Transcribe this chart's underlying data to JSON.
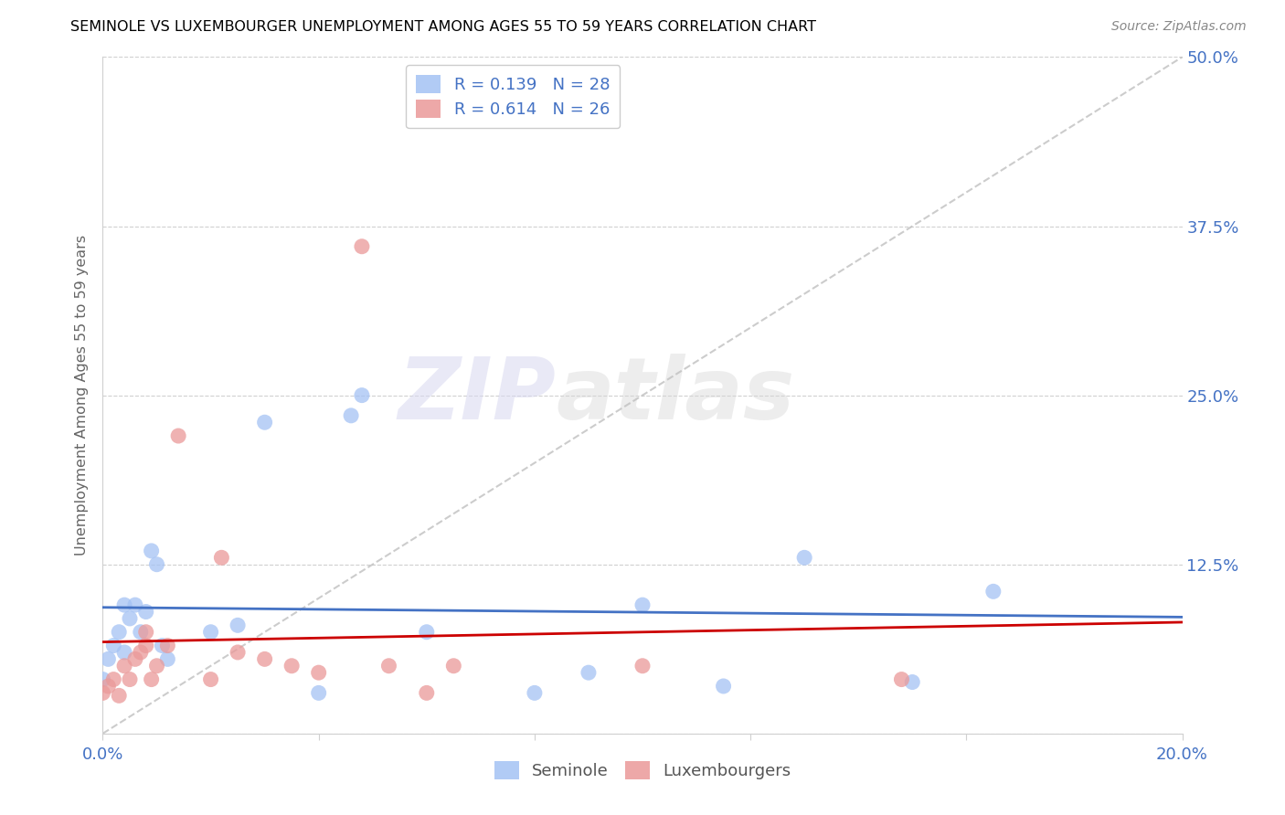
{
  "title": "SEMINOLE VS LUXEMBOURGER UNEMPLOYMENT AMONG AGES 55 TO 59 YEARS CORRELATION CHART",
  "source": "Source: ZipAtlas.com",
  "ylabel": "Unemployment Among Ages 55 to 59 years",
  "xlim": [
    0.0,
    0.2
  ],
  "ylim": [
    0.0,
    0.5
  ],
  "seminole_color": "#a4c2f4",
  "luxembourger_color": "#ea9999",
  "trend_color_diagonal": "#c0c0c0",
  "trend_color_seminole": "#4472c4",
  "trend_color_luxembourger": "#cc0000",
  "seminole_R": 0.139,
  "seminole_N": 28,
  "luxembourger_R": 0.614,
  "luxembourger_N": 26,
  "seminole_x": [
    0.0,
    0.001,
    0.002,
    0.003,
    0.004,
    0.004,
    0.005,
    0.006,
    0.007,
    0.008,
    0.009,
    0.01,
    0.011,
    0.012,
    0.02,
    0.025,
    0.03,
    0.04,
    0.046,
    0.048,
    0.06,
    0.08,
    0.09,
    0.1,
    0.115,
    0.13,
    0.15,
    0.165
  ],
  "seminole_y": [
    0.04,
    0.055,
    0.065,
    0.075,
    0.06,
    0.095,
    0.085,
    0.095,
    0.075,
    0.09,
    0.135,
    0.125,
    0.065,
    0.055,
    0.075,
    0.08,
    0.23,
    0.03,
    0.235,
    0.25,
    0.075,
    0.03,
    0.045,
    0.095,
    0.035,
    0.13,
    0.038,
    0.105
  ],
  "luxembourger_x": [
    0.0,
    0.001,
    0.002,
    0.003,
    0.004,
    0.005,
    0.006,
    0.007,
    0.008,
    0.008,
    0.009,
    0.01,
    0.012,
    0.014,
    0.02,
    0.022,
    0.025,
    0.03,
    0.035,
    0.04,
    0.048,
    0.053,
    0.06,
    0.065,
    0.1,
    0.148
  ],
  "luxembourger_y": [
    0.03,
    0.035,
    0.04,
    0.028,
    0.05,
    0.04,
    0.055,
    0.06,
    0.065,
    0.075,
    0.04,
    0.05,
    0.065,
    0.22,
    0.04,
    0.13,
    0.06,
    0.055,
    0.05,
    0.045,
    0.36,
    0.05,
    0.03,
    0.05,
    0.05,
    0.04
  ],
  "watermark_zip": "ZIP",
  "watermark_atlas": "atlas",
  "background_color": "#ffffff",
  "grid_color": "#d0d0d0",
  "axis_label_color": "#4472c4",
  "title_color": "#000000",
  "legend_label_color": "#4472c4"
}
